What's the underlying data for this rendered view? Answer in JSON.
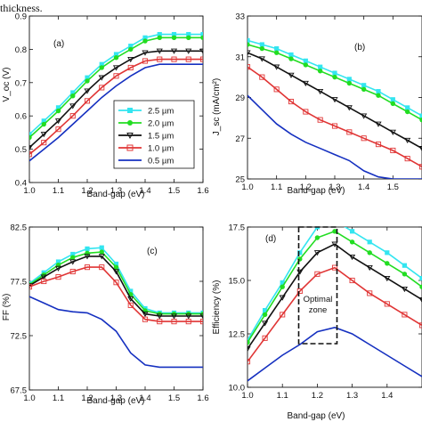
{
  "caption": "thickness.",
  "colors": {
    "2.5 µm": "#33e5f0",
    "2.0 µm": "#22dd22",
    "1.5 µm": "#111111",
    "1.0 µm": "#e03535",
    "0.5 µm": "#1530c0"
  },
  "legend": [
    "2.5 µm",
    "2.0 µm",
    "1.5 µm",
    "1.0 µm",
    "0.5 µm"
  ],
  "annotation": {
    "line1": "Optimal",
    "line2": "zone"
  },
  "chart_data": [
    {
      "type": "line",
      "panel_label": "(a)",
      "xlabel": "Band-gap (eV)",
      "ylabel": "V_oc (V)",
      "xlim": [
        1.0,
        1.6
      ],
      "ylim": [
        0.4,
        0.9
      ],
      "xticks": [
        "1.0",
        "1.1",
        "1.2",
        "1.3",
        "1.4",
        "1.5",
        "1.6"
      ],
      "yticks": [
        "0.4",
        "0.5",
        "0.6",
        "0.7",
        "0.8",
        "0.9"
      ],
      "x": [
        1.0,
        1.05,
        1.1,
        1.15,
        1.2,
        1.25,
        1.3,
        1.35,
        1.4,
        1.45,
        1.5,
        1.55,
        1.6
      ],
      "series": [
        {
          "name": "2.5 µm",
          "values": [
            0.545,
            0.585,
            0.625,
            0.67,
            0.715,
            0.755,
            0.785,
            0.81,
            0.835,
            0.845,
            0.845,
            0.845,
            0.845
          ]
        },
        {
          "name": "2.0 µm",
          "values": [
            0.535,
            0.575,
            0.615,
            0.66,
            0.705,
            0.745,
            0.775,
            0.8,
            0.825,
            0.835,
            0.835,
            0.835,
            0.835
          ]
        },
        {
          "name": "1.5 µm",
          "values": [
            0.505,
            0.545,
            0.585,
            0.63,
            0.675,
            0.715,
            0.745,
            0.77,
            0.79,
            0.795,
            0.795,
            0.795,
            0.795
          ]
        },
        {
          "name": "1.0 µm",
          "values": [
            0.485,
            0.52,
            0.56,
            0.6,
            0.645,
            0.685,
            0.72,
            0.745,
            0.765,
            0.77,
            0.77,
            0.77,
            0.77
          ]
        },
        {
          "name": "0.5 µm",
          "values": [
            0.465,
            0.5,
            0.535,
            0.575,
            0.615,
            0.655,
            0.69,
            0.72,
            0.745,
            0.755,
            0.755,
            0.755,
            0.755
          ]
        }
      ]
    },
    {
      "type": "line",
      "panel_label": "(b)",
      "xlabel": "Band-gap (eV)",
      "ylabel": "J_sc (mA/cm²)",
      "xlim": [
        1.0,
        1.6
      ],
      "ylim": [
        25,
        33
      ],
      "xticks": [
        "1.0",
        "1.1",
        "1.2",
        "1.3",
        "1.4",
        "1.5"
      ],
      "yticks": [
        "25",
        "27",
        "29",
        "31",
        "33"
      ],
      "x": [
        1.0,
        1.05,
        1.1,
        1.15,
        1.2,
        1.25,
        1.3,
        1.35,
        1.4,
        1.45,
        1.5,
        1.55,
        1.6
      ],
      "series": [
        {
          "name": "2.5 µm",
          "values": [
            31.8,
            31.6,
            31.4,
            31.1,
            30.8,
            30.5,
            30.2,
            29.9,
            29.6,
            29.3,
            28.9,
            28.5,
            28.1
          ]
        },
        {
          "name": "2.0 µm",
          "values": [
            31.6,
            31.4,
            31.2,
            30.9,
            30.6,
            30.3,
            30.0,
            29.7,
            29.4,
            29.1,
            28.7,
            28.3,
            27.9
          ]
        },
        {
          "name": "1.5 µm",
          "values": [
            31.2,
            30.9,
            30.5,
            30.1,
            29.7,
            29.3,
            28.9,
            28.5,
            28.1,
            27.7,
            27.3,
            26.9,
            26.5
          ]
        },
        {
          "name": "1.0 µm",
          "values": [
            30.5,
            30.0,
            29.4,
            28.8,
            28.3,
            27.9,
            27.6,
            27.3,
            27.0,
            26.7,
            26.4,
            26.0,
            25.6
          ]
        },
        {
          "name": "0.5 µm",
          "values": [
            29.1,
            28.4,
            27.7,
            27.2,
            26.8,
            26.5,
            26.2,
            25.9,
            25.4,
            25.1,
            25.0,
            25.0,
            25.0
          ]
        }
      ]
    },
    {
      "type": "line",
      "panel_label": "(c)",
      "xlabel": "Band-gap (eV)",
      "ylabel": "FF (%)",
      "xlim": [
        1.0,
        1.6
      ],
      "ylim": [
        67.5,
        82.5
      ],
      "xticks": [
        "1.0",
        "1.1",
        "1.2",
        "1.3",
        "1.4",
        "1.5",
        "1.6"
      ],
      "yticks": [
        "67.5",
        "72.5",
        "77.5",
        "82.5"
      ],
      "x": [
        1.0,
        1.05,
        1.1,
        1.15,
        1.2,
        1.25,
        1.3,
        1.35,
        1.4,
        1.45,
        1.5,
        1.55,
        1.6
      ],
      "series": [
        {
          "name": "2.5 µm",
          "values": [
            77.3,
            78.3,
            79.3,
            80.0,
            80.5,
            80.6,
            79.1,
            76.6,
            75.0,
            74.6,
            74.6,
            74.6,
            74.6
          ]
        },
        {
          "name": "2.0 µm",
          "values": [
            77.2,
            78.1,
            79.0,
            79.7,
            80.1,
            80.2,
            78.8,
            76.3,
            74.8,
            74.5,
            74.5,
            74.5,
            74.5
          ]
        },
        {
          "name": "1.5 µm",
          "values": [
            77.1,
            77.9,
            78.7,
            79.3,
            79.8,
            79.8,
            78.4,
            75.9,
            74.5,
            74.3,
            74.3,
            74.3,
            74.3
          ]
        },
        {
          "name": "1.0 µm",
          "values": [
            77.0,
            77.5,
            77.9,
            78.4,
            78.8,
            78.8,
            77.4,
            75.3,
            74.0,
            73.8,
            73.8,
            73.8,
            73.8
          ]
        },
        {
          "name": "0.5 µm",
          "values": [
            76.1,
            75.5,
            74.9,
            74.7,
            74.6,
            74.0,
            72.9,
            70.9,
            69.8,
            69.6,
            69.6,
            69.6,
            69.6
          ]
        }
      ]
    },
    {
      "type": "line",
      "panel_label": "(d)",
      "xlabel": "Band-gap (eV)",
      "ylabel": "Efficiency (%)",
      "xlim": [
        1.0,
        1.5
      ],
      "ylim": [
        10.0,
        17.5
      ],
      "xticks": [
        "1.0",
        "1.1",
        "1.2",
        "1.3",
        "1.4"
      ],
      "yticks": [
        "10.0",
        "12.5",
        "15.0",
        "17.5"
      ],
      "x": [
        1.0,
        1.05,
        1.1,
        1.15,
        1.2,
        1.25,
        1.3,
        1.35,
        1.4,
        1.45,
        1.5
      ],
      "series": [
        {
          "name": "2.5 µm",
          "values": [
            12.2,
            13.6,
            14.9,
            16.3,
            17.5,
            17.8,
            17.3,
            16.8,
            16.3,
            15.7,
            15.1
          ]
        },
        {
          "name": "2.0 µm",
          "values": [
            12.1,
            13.4,
            14.7,
            16.0,
            17.0,
            17.3,
            16.8,
            16.3,
            15.8,
            15.3,
            14.7
          ]
        },
        {
          "name": "1.5 µm",
          "values": [
            11.8,
            13.0,
            14.2,
            15.4,
            16.3,
            16.7,
            16.1,
            15.6,
            15.1,
            14.6,
            14.1
          ]
        },
        {
          "name": "1.0 µm",
          "values": [
            11.2,
            12.3,
            13.4,
            14.5,
            15.3,
            15.6,
            15.0,
            14.4,
            13.9,
            13.4,
            12.9
          ]
        },
        {
          "name": "0.5 µm",
          "values": [
            10.3,
            10.9,
            11.5,
            12.0,
            12.6,
            12.8,
            12.5,
            12.0,
            11.5,
            11.0,
            10.5
          ]
        }
      ]
    }
  ]
}
